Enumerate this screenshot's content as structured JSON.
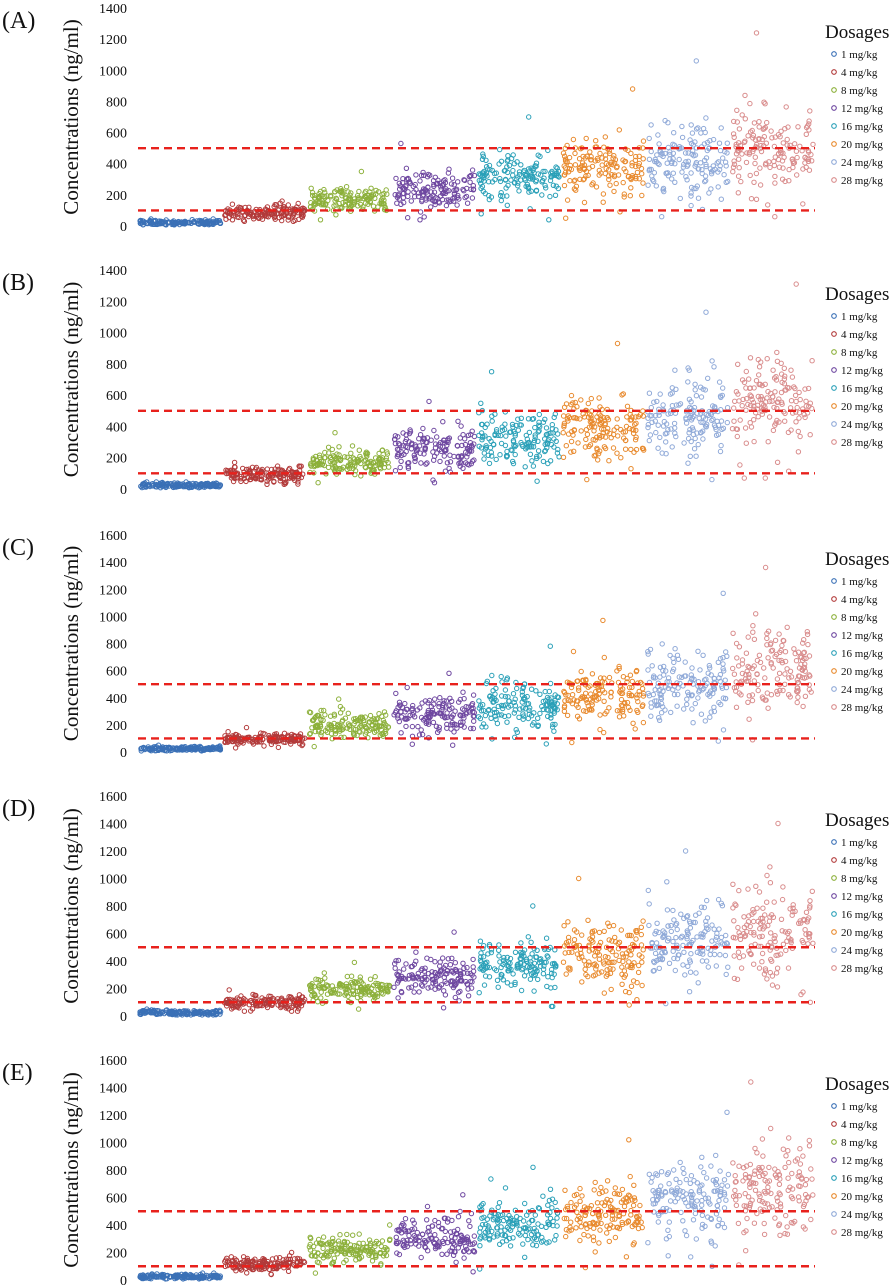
{
  "figure": {
    "panel_labels": [
      "(A)",
      "(B)",
      "(C)",
      "(D)",
      "(E)"
    ]
  },
  "chart_data": [
    {
      "panel": "(A)",
      "type": "scatter",
      "ylabel": "Concentrations (ng/ml)",
      "ylim": [
        0,
        1400
      ],
      "yticks": [
        0,
        200,
        400,
        600,
        800,
        1000,
        1200,
        1400
      ],
      "legend_title": "Dosages",
      "legend_position": "right",
      "reference_lines": [
        100,
        500
      ],
      "reference_line_color": "#e8211c",
      "reference_line_style": "dashed",
      "points_per_group": 150,
      "series": [
        {
          "name": "1 mg/kg",
          "color": "#3a70b6",
          "center": 22,
          "spread": 12,
          "min": 8,
          "max": 45
        },
        {
          "name": "4 mg/kg",
          "color": "#b23a3a",
          "center": 85,
          "spread": 35,
          "min": 30,
          "max": 160
        },
        {
          "name": "8 mg/kg",
          "color": "#8cb03a",
          "center": 165,
          "spread": 60,
          "min": 40,
          "max": 350
        },
        {
          "name": "12 mg/kg",
          "color": "#6e47a0",
          "center": 230,
          "spread": 90,
          "min": 40,
          "max": 530
        },
        {
          "name": "16 mg/kg",
          "color": "#2aa0b8",
          "center": 300,
          "spread": 110,
          "min": 40,
          "max": 700
        },
        {
          "name": "20 mg/kg",
          "color": "#e8892c",
          "center": 360,
          "spread": 140,
          "min": 50,
          "max": 880
        },
        {
          "name": "24 mg/kg",
          "color": "#8fa9d8",
          "center": 410,
          "spread": 160,
          "min": 60,
          "max": 1060
        },
        {
          "name": "28 mg/kg",
          "color": "#d98c8c",
          "center": 470,
          "spread": 190,
          "min": 60,
          "max": 1240
        }
      ]
    },
    {
      "panel": "(B)",
      "type": "scatter",
      "ylabel": "Concentrations (ng/ml)",
      "ylim": [
        0,
        1400
      ],
      "yticks": [
        0,
        200,
        400,
        600,
        800,
        1000,
        1200,
        1400
      ],
      "legend_title": "Dosages",
      "legend_position": "right",
      "reference_lines": [
        100,
        500
      ],
      "reference_line_color": "#e8211c",
      "reference_line_style": "dashed",
      "points_per_group": 150,
      "series": [
        {
          "name": "1 mg/kg",
          "color": "#3a70b6",
          "center": 24,
          "spread": 12,
          "min": 8,
          "max": 45
        },
        {
          "name": "4 mg/kg",
          "color": "#b23a3a",
          "center": 92,
          "spread": 35,
          "min": 30,
          "max": 170
        },
        {
          "name": "8 mg/kg",
          "color": "#8cb03a",
          "center": 180,
          "spread": 60,
          "min": 40,
          "max": 360
        },
        {
          "name": "12 mg/kg",
          "color": "#6e47a0",
          "center": 250,
          "spread": 95,
          "min": 40,
          "max": 560
        },
        {
          "name": "16 mg/kg",
          "color": "#2aa0b8",
          "center": 320,
          "spread": 120,
          "min": 50,
          "max": 750
        },
        {
          "name": "20 mg/kg",
          "color": "#e8892c",
          "center": 400,
          "spread": 150,
          "min": 60,
          "max": 930
        },
        {
          "name": "24 mg/kg",
          "color": "#8fa9d8",
          "center": 460,
          "spread": 180,
          "min": 60,
          "max": 1130
        },
        {
          "name": "28 mg/kg",
          "color": "#d98c8c",
          "center": 540,
          "spread": 210,
          "min": 70,
          "max": 1310
        }
      ]
    },
    {
      "panel": "(C)",
      "type": "scatter",
      "ylabel": "Concentrations (ng/ml)",
      "ylim": [
        0,
        1600
      ],
      "yticks": [
        0,
        200,
        400,
        600,
        800,
        1000,
        1200,
        1400,
        1600
      ],
      "legend_title": "Dosages",
      "legend_position": "right",
      "reference_lines": [
        100,
        500
      ],
      "reference_line_color": "#e8211c",
      "reference_line_style": "dashed",
      "points_per_group": 150,
      "series": [
        {
          "name": "1 mg/kg",
          "color": "#3a70b6",
          "center": 25,
          "spread": 12,
          "min": 8,
          "max": 50
        },
        {
          "name": "4 mg/kg",
          "color": "#b23a3a",
          "center": 95,
          "spread": 35,
          "min": 30,
          "max": 180
        },
        {
          "name": "8 mg/kg",
          "color": "#8cb03a",
          "center": 190,
          "spread": 65,
          "min": 40,
          "max": 390
        },
        {
          "name": "12 mg/kg",
          "color": "#6e47a0",
          "center": 270,
          "spread": 100,
          "min": 50,
          "max": 580
        },
        {
          "name": "16 mg/kg",
          "color": "#2aa0b8",
          "center": 340,
          "spread": 120,
          "min": 60,
          "max": 780
        },
        {
          "name": "20 mg/kg",
          "color": "#e8892c",
          "center": 420,
          "spread": 150,
          "min": 70,
          "max": 970
        },
        {
          "name": "24 mg/kg",
          "color": "#8fa9d8",
          "center": 500,
          "spread": 190,
          "min": 80,
          "max": 1170
        },
        {
          "name": "28 mg/kg",
          "color": "#d98c8c",
          "center": 580,
          "spread": 220,
          "min": 90,
          "max": 1360
        }
      ]
    },
    {
      "panel": "(D)",
      "type": "scatter",
      "ylabel": "Concentrations (ng/ml)",
      "ylim": [
        0,
        1600
      ],
      "yticks": [
        0,
        200,
        400,
        600,
        800,
        1000,
        1200,
        1400,
        1600
      ],
      "legend_title": "Dosages",
      "legend_position": "right",
      "reference_lines": [
        100,
        500
      ],
      "reference_line_color": "#e8211c",
      "reference_line_style": "dashed",
      "points_per_group": 150,
      "series": [
        {
          "name": "1 mg/kg",
          "color": "#3a70b6",
          "center": 25,
          "spread": 12,
          "min": 8,
          "max": 50
        },
        {
          "name": "4 mg/kg",
          "color": "#b23a3a",
          "center": 100,
          "spread": 35,
          "min": 35,
          "max": 190
        },
        {
          "name": "8 mg/kg",
          "color": "#8cb03a",
          "center": 200,
          "spread": 65,
          "min": 50,
          "max": 390
        },
        {
          "name": "12 mg/kg",
          "color": "#6e47a0",
          "center": 290,
          "spread": 100,
          "min": 60,
          "max": 610
        },
        {
          "name": "16 mg/kg",
          "color": "#2aa0b8",
          "center": 370,
          "spread": 130,
          "min": 70,
          "max": 800
        },
        {
          "name": "20 mg/kg",
          "color": "#e8892c",
          "center": 450,
          "spread": 160,
          "min": 80,
          "max": 1000
        },
        {
          "name": "24 mg/kg",
          "color": "#8fa9d8",
          "center": 540,
          "spread": 200,
          "min": 90,
          "max": 1200
        },
        {
          "name": "28 mg/kg",
          "color": "#d98c8c",
          "center": 620,
          "spread": 230,
          "min": 100,
          "max": 1400
        }
      ]
    },
    {
      "panel": "(E)",
      "type": "scatter",
      "ylabel": "Concentrations (ng/ml)",
      "ylim": [
        0,
        1600
      ],
      "yticks": [
        0,
        200,
        400,
        600,
        800,
        1000,
        1200,
        1400,
        1600
      ],
      "legend_title": "Dosages",
      "legend_position": "right",
      "reference_lines": [
        100,
        500
      ],
      "reference_line_color": "#e8211c",
      "reference_line_style": "dashed",
      "points_per_group": 150,
      "series": [
        {
          "name": "1 mg/kg",
          "color": "#3a70b6",
          "center": 26,
          "spread": 12,
          "min": 8,
          "max": 50
        },
        {
          "name": "4 mg/kg",
          "color": "#b23a3a",
          "center": 110,
          "spread": 38,
          "min": 40,
          "max": 200
        },
        {
          "name": "8 mg/kg",
          "color": "#8cb03a",
          "center": 220,
          "spread": 70,
          "min": 50,
          "max": 400
        },
        {
          "name": "12 mg/kg",
          "color": "#6e47a0",
          "center": 310,
          "spread": 105,
          "min": 60,
          "max": 620
        },
        {
          "name": "16 mg/kg",
          "color": "#2aa0b8",
          "center": 400,
          "spread": 140,
          "min": 80,
          "max": 820
        },
        {
          "name": "20 mg/kg",
          "color": "#e8892c",
          "center": 480,
          "spread": 170,
          "min": 90,
          "max": 1020
        },
        {
          "name": "24 mg/kg",
          "color": "#8fa9d8",
          "center": 570,
          "spread": 210,
          "min": 100,
          "max": 1220
        },
        {
          "name": "28 mg/kg",
          "color": "#d98c8c",
          "center": 650,
          "spread": 240,
          "min": 110,
          "max": 1440
        }
      ]
    }
  ]
}
